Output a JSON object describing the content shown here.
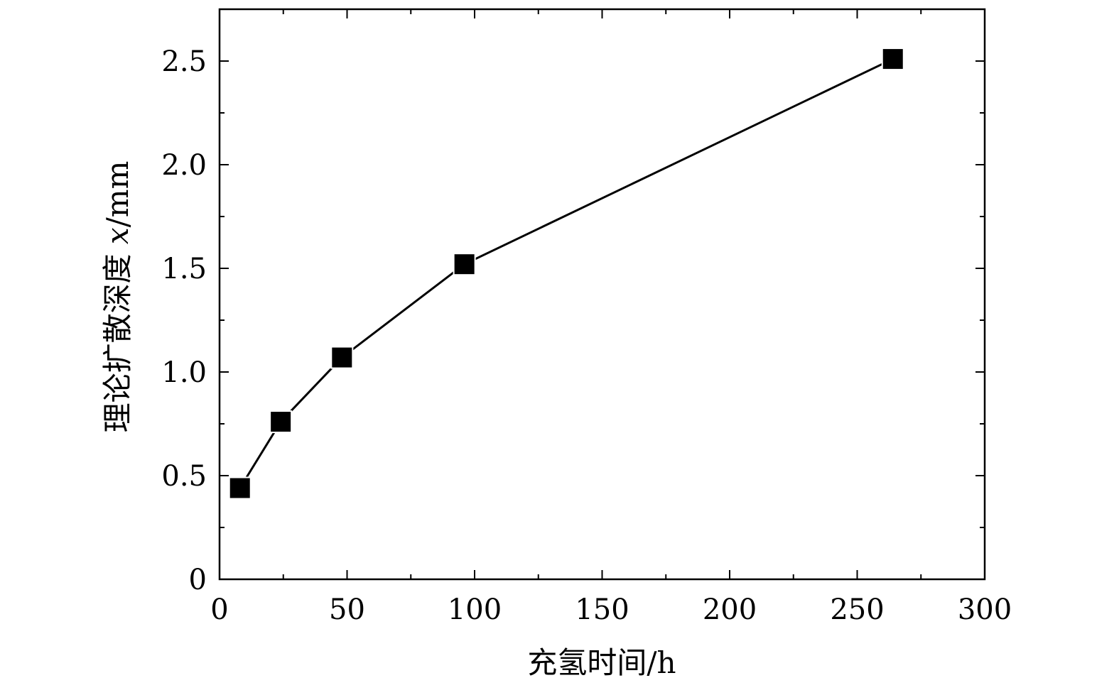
{
  "chart_data": {
    "type": "line",
    "title": "",
    "xlabel": "充氢时间/h",
    "ylabel_text": "理论扩散深度 ",
    "ylabel_var": "x",
    "ylabel_unit": "/mm",
    "xlim": [
      0,
      300
    ],
    "ylim": [
      0,
      2.75
    ],
    "x_ticks": [
      0,
      50,
      100,
      150,
      200,
      250,
      300
    ],
    "x_tick_labels": [
      "0",
      "50",
      "100",
      "150",
      "200",
      "250",
      "300"
    ],
    "x_minor_ticks": [
      25,
      75,
      125,
      175,
      225,
      275
    ],
    "y_ticks": [
      0,
      0.5,
      1.0,
      1.5,
      2.0,
      2.5
    ],
    "y_tick_labels": [
      "0",
      "0.5",
      "1.0",
      "1.5",
      "2.0",
      "2.5"
    ],
    "y_minor_ticks": [
      0.25,
      0.75,
      1.25,
      1.75,
      2.25
    ],
    "grid": false,
    "series": [
      {
        "marker": "square",
        "color": "#000000",
        "x": [
          8,
          24,
          48,
          96,
          264
        ],
        "y": [
          0.44,
          0.76,
          1.07,
          1.52,
          2.51
        ]
      }
    ]
  }
}
